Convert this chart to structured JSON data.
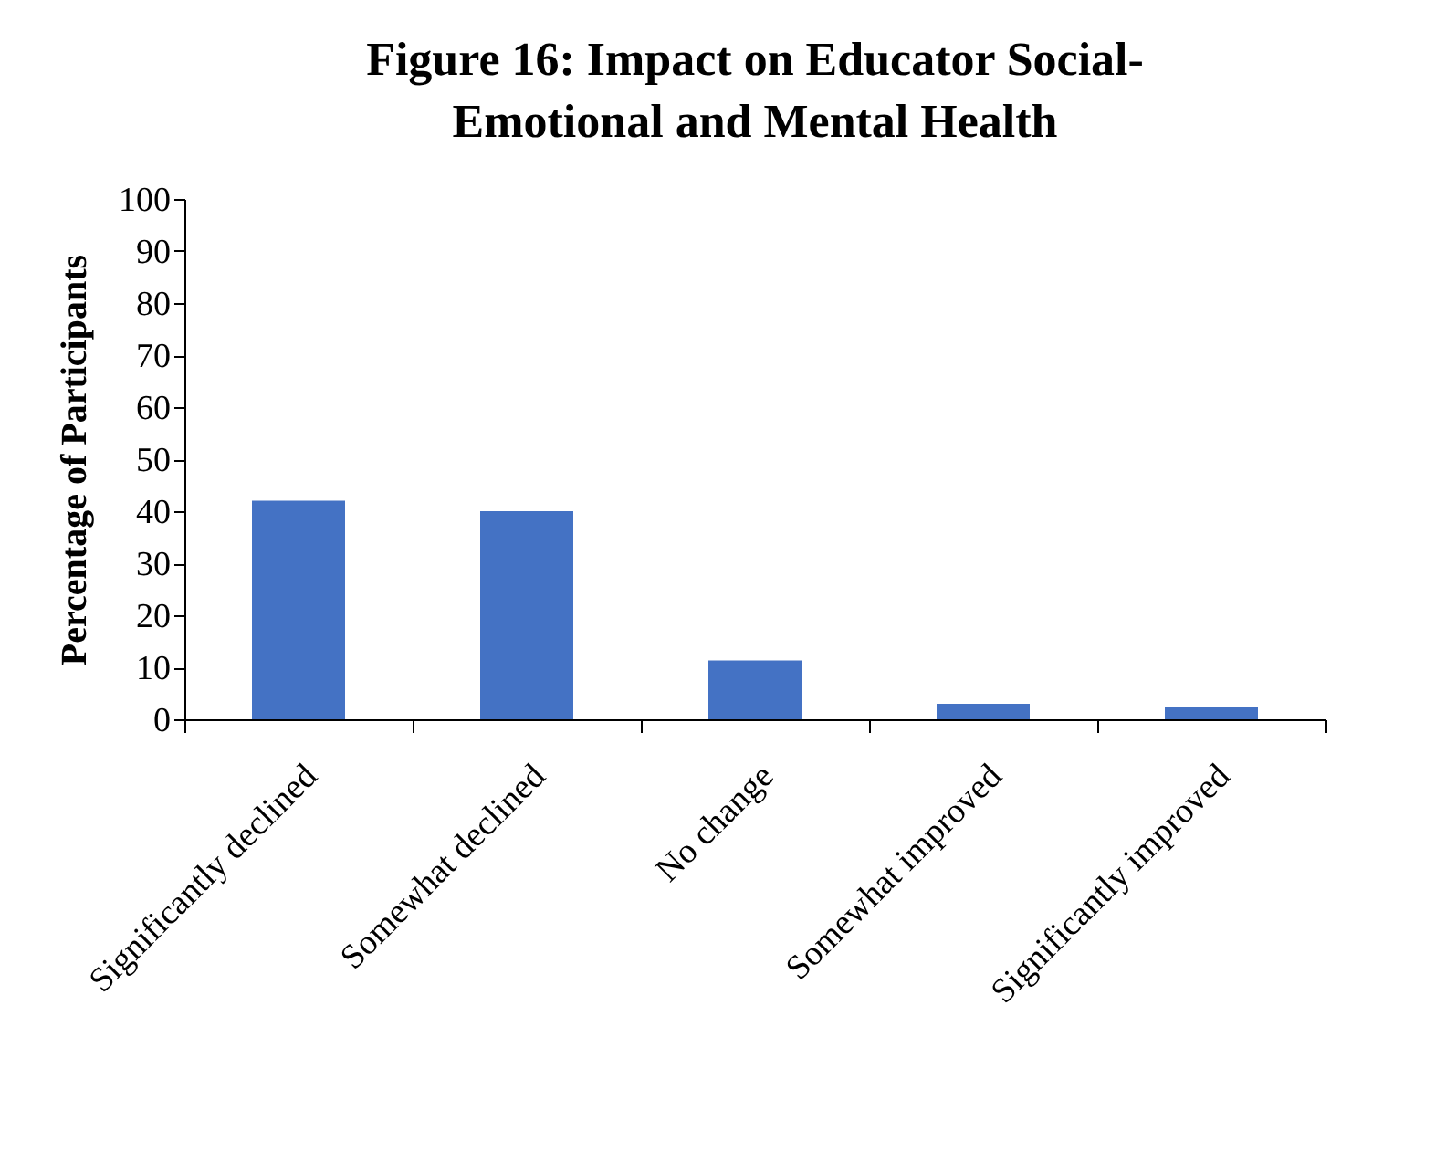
{
  "chart_data": {
    "type": "bar",
    "title": [
      "Figure 16: Impact on Educator Social-",
      "Emotional and Mental Health"
    ],
    "ylabel": "Percentage  of  Participants",
    "categories": [
      "Significantly declined",
      "Somewhat declined",
      "No change",
      "Somewhat improved",
      "Significantly improved"
    ],
    "values": [
      42,
      40,
      11.3,
      3,
      2.3
    ],
    "color": "#4472c4",
    "ylim": [
      0,
      100
    ],
    "yticks": [
      0,
      10,
      20,
      30,
      40,
      50,
      60,
      70,
      80,
      90,
      100
    ],
    "grid": false
  }
}
